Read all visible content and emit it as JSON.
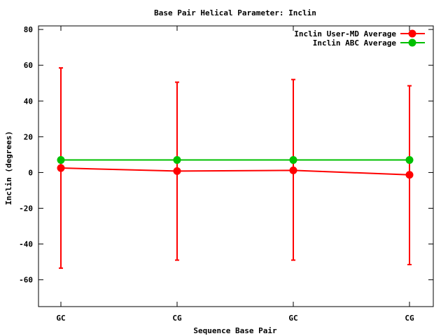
{
  "chart_data": {
    "type": "line",
    "title": "Base Pair Helical Parameter: Inclin",
    "xlabel": "Sequence Base Pair",
    "ylabel": "Inclin (degrees)",
    "categories": [
      "GC",
      "CG",
      "GC",
      "CG"
    ],
    "ylim": [
      -75,
      82
    ],
    "yticks": [
      80,
      60,
      40,
      20,
      0,
      -20,
      -40,
      -60
    ],
    "grid": false,
    "legend_position": "top-right",
    "series": [
      {
        "name": "Inclin User-MD Average",
        "color": "#ff0000",
        "values": [
          2.5,
          0.8,
          1.2,
          -1.3
        ],
        "error_low": [
          -53.5,
          -49.0,
          -49.0,
          -51.5
        ],
        "error_high": [
          58.5,
          50.5,
          52.0,
          48.5
        ]
      },
      {
        "name": "Inclin ABC Average",
        "color": "#00c000",
        "values": [
          7.0,
          7.0,
          7.0,
          7.0
        ]
      }
    ]
  }
}
